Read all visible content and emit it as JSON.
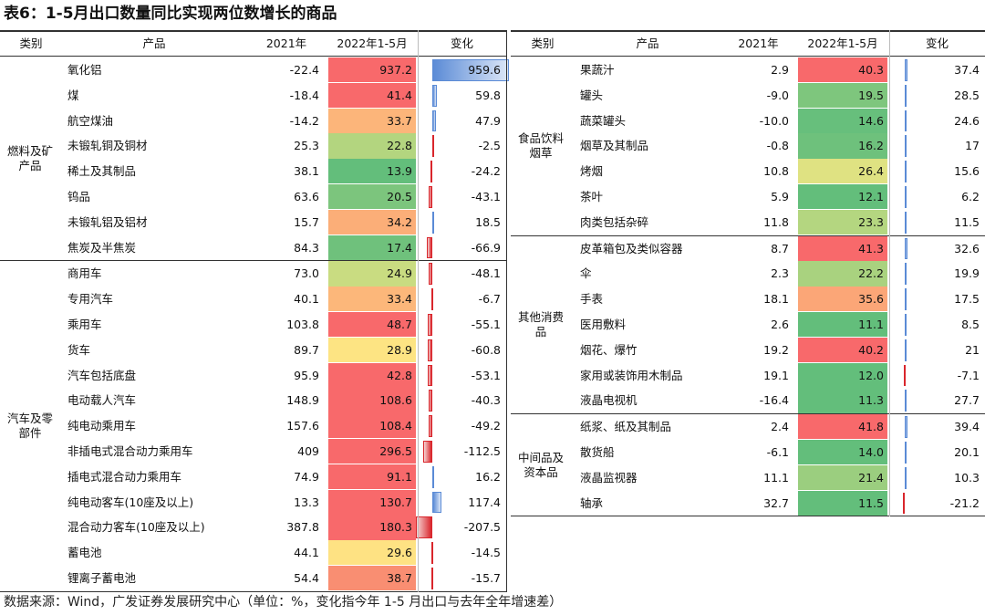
{
  "title": "表6：1-5月出口数量同比实现两位数增长的商品",
  "note": "数据来源：Wind，广发证券发展研究中心（单位：%，变化指今年 1-5 月出口与去年全年增速差）",
  "bar_colors": {
    "positive": "#5b8bd6",
    "negative": "#d9262c"
  },
  "tables": [
    {
      "header": [
        "类别",
        "产品",
        "2021年",
        "2022年1-5月",
        "变化"
      ],
      "groups": [
        {
          "label": "燃料及矿产品",
          "rows": [
            {
              "product": "氧化铝",
              "y2021": -22.4,
              "y2022": 937.2,
              "change": 959.6,
              "color": "#f8696b"
            },
            {
              "product": "煤",
              "y2021": -18.4,
              "y2022": 41.4,
              "change": 59.8,
              "color": "#f8696b"
            },
            {
              "product": "航空煤油",
              "y2021": -14.2,
              "y2022": 33.7,
              "change": 47.9,
              "color": "#fcb57a"
            },
            {
              "product": "未锻轧铜及铜材",
              "y2021": 25.3,
              "y2022": 22.8,
              "change": -2.5,
              "color": "#b3d57f"
            },
            {
              "product": "稀土及其制品",
              "y2021": 38.1,
              "y2022": 13.9,
              "change": -24.2,
              "color": "#63be7b"
            },
            {
              "product": "钨品",
              "y2021": 63.6,
              "y2022": 20.5,
              "change": -43.1,
              "color": "#7cc57d"
            },
            {
              "product": "未锻轧铝及铝材",
              "y2021": 15.7,
              "y2022": 34.2,
              "change": 18.5,
              "color": "#fbae78"
            },
            {
              "product": "焦炭及半焦炭",
              "y2021": 84.3,
              "y2022": 17.4,
              "change": -66.9,
              "color": "#6fc17c"
            }
          ]
        },
        {
          "label": "汽车及零部件",
          "rows": [
            {
              "product": "商用车",
              "y2021": {
                "value": 73,
                "label": "73.0"
              },
              "y2022": 24.9,
              "change": -48.1,
              "color": "#c9dc81"
            },
            {
              "product": "专用汽车",
              "y2021": 40.1,
              "y2022": 33.4,
              "change": -6.7,
              "color": "#fcb77a"
            },
            {
              "product": "乘用车",
              "y2021": 103.8,
              "y2022": 48.7,
              "change": -55.1,
              "color": "#f8696b"
            },
            {
              "product": "货车",
              "y2021": 89.7,
              "y2022": 28.9,
              "change": -60.8,
              "color": "#fde483"
            },
            {
              "product": "汽车包括底盘",
              "y2021": 95.9,
              "y2022": 42.8,
              "change": -53.1,
              "color": "#f8696b"
            },
            {
              "product": "电动载人汽车",
              "y2021": 148.9,
              "y2022": 108.6,
              "change": -40.3,
              "color": "#f8696b"
            },
            {
              "product": "纯电动乘用车",
              "y2021": 157.6,
              "y2022": 108.4,
              "change": -49.2,
              "color": "#f8696b"
            },
            {
              "product": "非插电式混合动力乘用车",
              "y2021": 409.0,
              "y2022": 296.5,
              "change": -112.5,
              "color": "#f8696b"
            },
            {
              "product": "插电式混合动力乘用车",
              "y2021": 74.9,
              "y2022": 91.1,
              "change": 16.2,
              "color": "#f8696b"
            },
            {
              "product": "纯电动客车(10座及以上)",
              "y2021": 13.3,
              "y2022": 130.7,
              "change": 117.4,
              "color": "#f8696b"
            },
            {
              "product": "混合动力客车(10座及以上)",
              "y2021": 387.8,
              "y2022": 180.3,
              "change": -207.5,
              "color": "#f8696b"
            },
            {
              "product": "蓄电池",
              "y2021": 44.1,
              "y2022": 29.6,
              "change": -14.5,
              "color": "#fee283"
            },
            {
              "product": "锂离子蓄电池",
              "y2021": 54.4,
              "y2022": 38.7,
              "change": -15.7,
              "color": "#f98e72"
            }
          ]
        }
      ]
    },
    {
      "header": [
        "类别",
        "产品",
        "2021年",
        "2022年1-5月",
        "变化"
      ],
      "groups": [
        {
          "label": "食品饮料烟草",
          "rows": [
            {
              "product": "果蔬汁",
              "y2021": 2.9,
              "y2022": 40.3,
              "change": 37.4,
              "color": "#f8696b"
            },
            {
              "product": "罐头",
              "y2021": {
                "value": -9,
                "label": "-9.0"
              },
              "y2022": 19.5,
              "change": 28.5,
              "color": "#7ec67d"
            },
            {
              "product": "蔬菜罐头",
              "y2021": {
                "value": -10,
                "label": "-10.0"
              },
              "y2022": 14.6,
              "change": 24.6,
              "color": "#67bf7c"
            },
            {
              "product": "烟草及其制品",
              "y2021": -0.8,
              "y2022": 16.2,
              "change": 17.0,
              "color": "#6ec17c"
            },
            {
              "product": "烤烟",
              "y2021": 10.8,
              "y2022": 26.4,
              "change": 15.6,
              "color": "#dfe282"
            },
            {
              "product": "茶叶",
              "y2021": 5.9,
              "y2022": 12.1,
              "change": 6.2,
              "color": "#63be7b"
            },
            {
              "product": "肉类包括杂碎",
              "y2021": 11.8,
              "y2022": 23.3,
              "change": 11.5,
              "color": "#b4d680"
            }
          ]
        },
        {
          "label": "其他消费品",
          "rows": [
            {
              "product": "皮革箱包及类似容器",
              "y2021": 8.7,
              "y2022": 41.3,
              "change": 32.6,
              "color": "#f8696b"
            },
            {
              "product": "伞",
              "y2021": 2.3,
              "y2022": 22.2,
              "change": 19.9,
              "color": "#a9d27f"
            },
            {
              "product": "手表",
              "y2021": 18.1,
              "y2022": 35.6,
              "change": 17.5,
              "color": "#fba677"
            },
            {
              "product": "医用敷料",
              "y2021": 2.6,
              "y2022": 11.1,
              "change": 8.5,
              "color": "#63be7b"
            },
            {
              "product": "烟花、爆竹",
              "y2021": 19.2,
              "y2022": 40.2,
              "change": 21.0,
              "color": "#f8696b"
            },
            {
              "product": "家用或装饰用木制品",
              "y2021": 19.1,
              "y2022": {
                "value": 12,
                "label": "12.0"
              },
              "change": -7.1,
              "color": "#63be7b"
            },
            {
              "product": "液晶电视机",
              "y2021": -16.4,
              "y2022": 11.3,
              "change": 27.7,
              "color": "#63be7b"
            }
          ]
        },
        {
          "label": "中间品及资本品",
          "rows": [
            {
              "product": "纸浆、纸及其制品",
              "y2021": 2.4,
              "y2022": 41.8,
              "change": 39.4,
              "color": "#f8696b"
            },
            {
              "product": "散货船",
              "y2021": -6.1,
              "y2022": {
                "value": 14,
                "label": "14.0"
              },
              "change": 20.1,
              "color": "#63be7b"
            },
            {
              "product": "液晶监视器",
              "y2021": 11.1,
              "y2022": 21.4,
              "change": 10.3,
              "color": "#9bce7f"
            },
            {
              "product": "轴承",
              "y2021": 32.7,
              "y2022": 11.5,
              "change": -21.2,
              "color": "#63be7b"
            }
          ]
        }
      ]
    }
  ]
}
